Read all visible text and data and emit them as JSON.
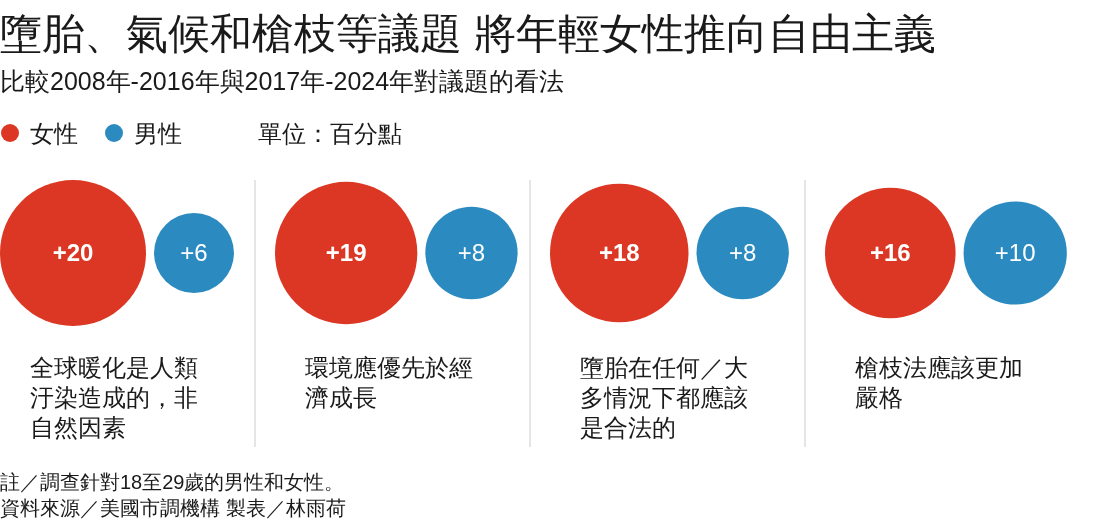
{
  "chart_data": {
    "type": "other",
    "title": "墮胎、氣候和槍枝等議題 將年輕女性推向自由主義",
    "subtitle": "比較2008年-2016年與2017年-2024年對議題的看法",
    "categories": [
      "全球暖化是人類汙染造成的，非自然因素",
      "環境應優先於經濟成長",
      "墮胎在任何／大多情況下都應該是合法的",
      "槍枝法應該更加嚴格"
    ],
    "series": [
      {
        "name": "女性",
        "color": "#dc3724",
        "values": [
          20,
          19,
          18,
          16
        ],
        "value_labels": [
          "+20",
          "+19",
          "+18",
          "+16"
        ]
      },
      {
        "name": "男性",
        "color": "#2b8bc0",
        "values": [
          6,
          8,
          8,
          10
        ],
        "value_labels": [
          "+6",
          "+8",
          "+8",
          "+10"
        ]
      }
    ],
    "legend": "top left",
    "annotations": [
      "單位：百分點",
      "註／調查針對18至29歲的男性和女性。",
      "資料來源／美國市調機構 製表／林雨荷"
    ]
  }
}
